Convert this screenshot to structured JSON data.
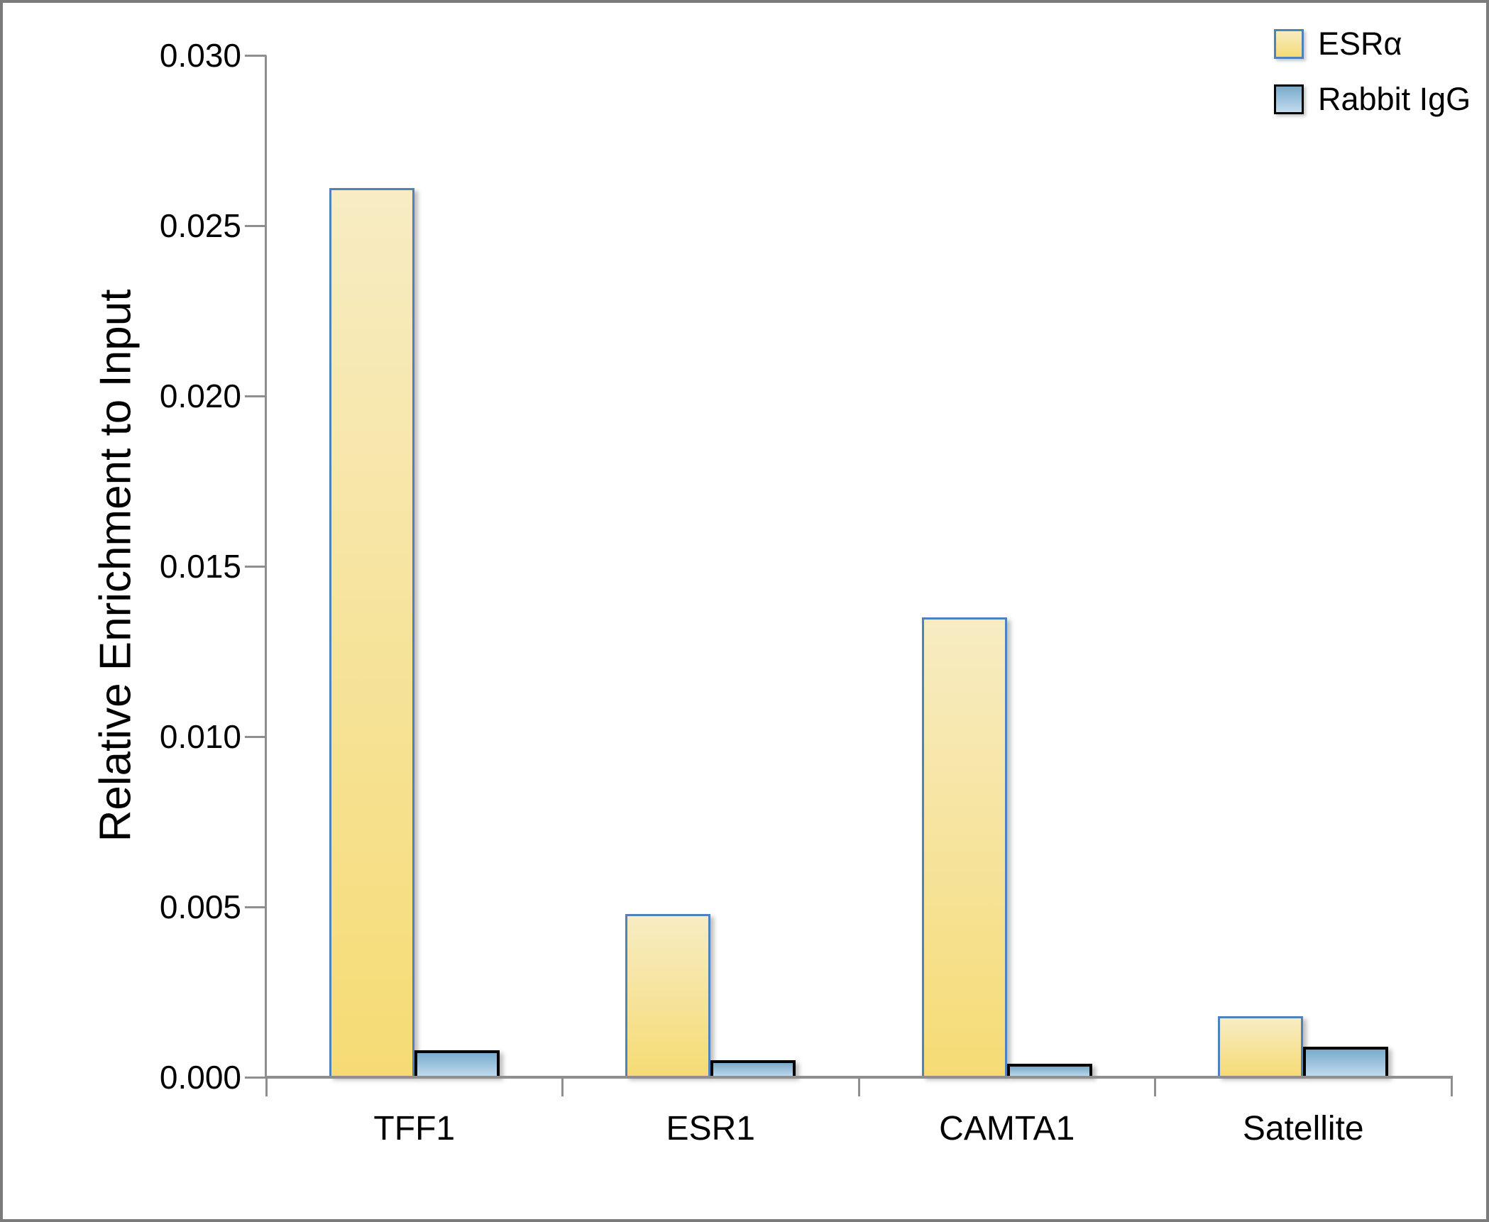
{
  "figure": {
    "background": "#FFFFFF",
    "frame_border_color": "#7B7B7B",
    "axis_color": "#8F8F8F",
    "text_color": "#000000"
  },
  "chart_data": {
    "type": "bar",
    "title": "",
    "xlabel": "",
    "ylabel": "Relative Enrichment to Input",
    "categories": [
      "TFF1",
      "ESR1",
      "CAMTA1",
      "Satellite"
    ],
    "series": [
      {
        "name": "ESRα",
        "values": [
          0.0261,
          0.0048,
          0.0135,
          0.0018
        ],
        "fill_top": "#F7ECC3",
        "fill_bottom": "#F6DB74",
        "border_color": "#4F81BD"
      },
      {
        "name": "Rabbit IgG",
        "values": [
          0.0008,
          0.0005,
          0.0004,
          0.0009
        ],
        "fill_top": "#79ABCC",
        "fill_bottom": "#C3DCEE",
        "border_color": "#000000"
      }
    ],
    "ylim": [
      0,
      0.03
    ],
    "ytick_step": 0.005,
    "ytick_labels": [
      "0.000",
      "0.005",
      "0.010",
      "0.015",
      "0.020",
      "0.025",
      "0.030"
    ],
    "grid": false,
    "legend_position": "top-right"
  }
}
